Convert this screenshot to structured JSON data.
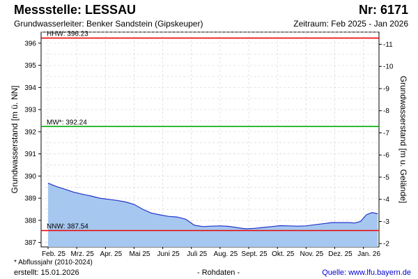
{
  "header": {
    "title": "Messstelle: LESSAU",
    "number": "Nr: 6171",
    "aquifer": "Grundwasserleiter:   Benker Sandstein (Gipskeuper)",
    "period": "Zeitraum: Feb 2025 - Jan 2026"
  },
  "footer": {
    "note": "* Abflussjahr (2010-2024)",
    "created": "erstellt:  15.01.2026",
    "raw": "- Rohdaten -",
    "source": "Quelle:  www.lfu.bayern.de"
  },
  "colors": {
    "fill": "#a6c8f0",
    "line": "#2233cc",
    "hhw": "#ee0000",
    "nnw": "#ee0000",
    "mw": "#00aa00",
    "grid": "#d0d0d0"
  },
  "chart_data": {
    "type": "area",
    "ylabel_left": "Grundwasserstand [m ü. NN]",
    "ylabel_right": "Grundwasserstand [m u. Gelände]",
    "ylim": [
      386.8,
      396.5
    ],
    "yticks_left": [
      "387",
      "388",
      "389",
      "390",
      "391",
      "392",
      "393",
      "394",
      "395",
      "396"
    ],
    "yticks_right": [
      "-2",
      "-3",
      "-4",
      "-5",
      "-6",
      "-7",
      "-8",
      "-9",
      "-10",
      "-11"
    ],
    "x_labels": [
      "Feb. 25",
      "Mrz. 25",
      "Apr. 25",
      "Mai 25",
      "Juni 25",
      "Juli 25",
      "Aug. 25",
      "Sept. 25",
      "Okt. 25",
      "Nov. 25",
      "Dez. 25",
      "Jan. 26"
    ],
    "grid": true,
    "reference_lines": [
      {
        "label": "HHW: 396.23",
        "value": 396.23,
        "color": "#ee0000"
      },
      {
        "label": "MW*: 392.24",
        "value": 392.24,
        "color": "#00aa00"
      },
      {
        "label": "NNW: 387.54",
        "value": 387.54,
        "color": "#ee0000"
      }
    ],
    "series": [
      {
        "x": [
          0,
          0.3,
          0.6,
          0.9,
          1.2,
          1.5,
          1.8,
          2.1,
          2.4,
          2.7,
          3.0,
          3.3,
          3.6,
          3.9,
          4.2,
          4.5,
          4.8,
          5.1,
          5.4,
          5.7,
          6.0,
          6.3,
          6.6,
          6.9,
          7.2,
          7.5,
          7.8,
          8.1,
          8.4,
          8.7,
          9.0,
          9.3,
          9.6,
          9.9,
          10.2,
          10.5,
          10.7,
          10.9,
          11.1,
          11.3,
          11.5
        ],
        "values": [
          389.68,
          389.52,
          389.4,
          389.27,
          389.18,
          389.1,
          389.0,
          388.95,
          388.9,
          388.83,
          388.72,
          388.5,
          388.33,
          388.25,
          388.18,
          388.15,
          388.05,
          387.78,
          387.72,
          387.74,
          387.75,
          387.73,
          387.67,
          387.62,
          387.64,
          387.68,
          387.72,
          387.76,
          387.75,
          387.74,
          387.75,
          387.8,
          387.85,
          387.9,
          387.9,
          387.9,
          387.88,
          387.95,
          388.25,
          388.35,
          388.3
        ]
      }
    ]
  }
}
